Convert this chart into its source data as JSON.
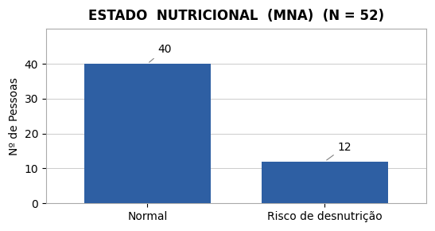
{
  "title": "ESTADO  NUTRICIONAL  (MNA)  (N = 52)",
  "categories": [
    "Normal",
    "Risco de desnutrição"
  ],
  "values": [
    40,
    12
  ],
  "bar_color": "#2e5fa3",
  "ylabel": "Nº de Pessoas",
  "ylim": [
    0,
    50
  ],
  "yticks": [
    0,
    10,
    20,
    30,
    40
  ],
  "title_fontsize": 12,
  "label_fontsize": 10,
  "tick_fontsize": 10,
  "annotation_fontsize": 10,
  "background_color": "#ffffff",
  "bar_width": 0.5,
  "bar_positions": [
    0.3,
    1.0
  ],
  "xlim": [
    -0.1,
    1.4
  ]
}
